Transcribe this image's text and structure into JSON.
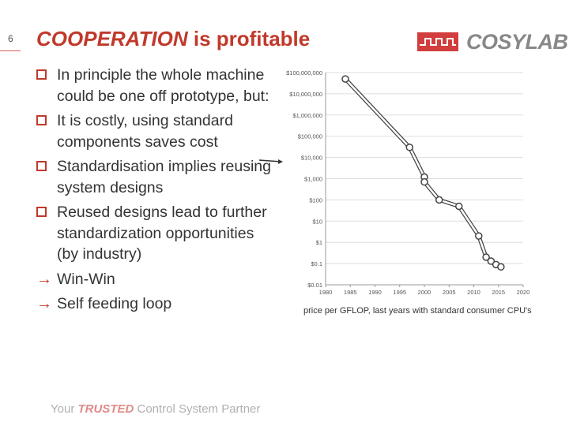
{
  "slide": {
    "number": "6",
    "title_emphasis": "COOPERATION",
    "title_rest": " is profitable"
  },
  "logo": {
    "text": "COSYLAB",
    "color": "#d23d3d"
  },
  "bullets": [
    {
      "marker": "square",
      "text": "In principle the whole machine could be one off prototype, but:"
    },
    {
      "marker": "square",
      "text": "It is costly, using standard components saves cost"
    },
    {
      "marker": "square",
      "text": "Standardisation implies reusing system designs"
    },
    {
      "marker": "square",
      "text": "Reused designs lead to further standardization opportunities (by industry)"
    },
    {
      "marker": "arrow",
      "text": "Win-Win"
    },
    {
      "marker": "arrow",
      "text": "Self feeding loop"
    }
  ],
  "chart_data": {
    "type": "line",
    "scale": "log",
    "xlim": [
      1980,
      2020
    ],
    "x_ticks": [
      "1980",
      "1985",
      "1990",
      "1995",
      "2000",
      "2005",
      "2010",
      "2015",
      "2020"
    ],
    "y_ticks": [
      "$100,000,000",
      "$10,000,000",
      "$1,000,000",
      "$100,000",
      "$10,000",
      "$1,000",
      "$100",
      "$10",
      "$1",
      "$0.1",
      "$0.01"
    ],
    "ylim": [
      0.01,
      100000000
    ],
    "grid": "horizontal",
    "series": [
      {
        "points": [
          [
            1984,
            50000000
          ],
          [
            1997,
            30000
          ],
          [
            2000,
            1200
          ],
          [
            2000,
            700
          ],
          [
            2003,
            100
          ],
          [
            2007,
            50
          ],
          [
            2011,
            2
          ],
          [
            2012.5,
            0.2
          ],
          [
            2013.5,
            0.13
          ],
          [
            2014.5,
            0.09
          ],
          [
            2015.5,
            0.07
          ]
        ]
      }
    ]
  },
  "caption": "price per GFLOP, last years  with standard consumer CPU's",
  "footer": {
    "prefix": "Your ",
    "trusted": "TRUSTED",
    "suffix": " Control System Partner"
  }
}
